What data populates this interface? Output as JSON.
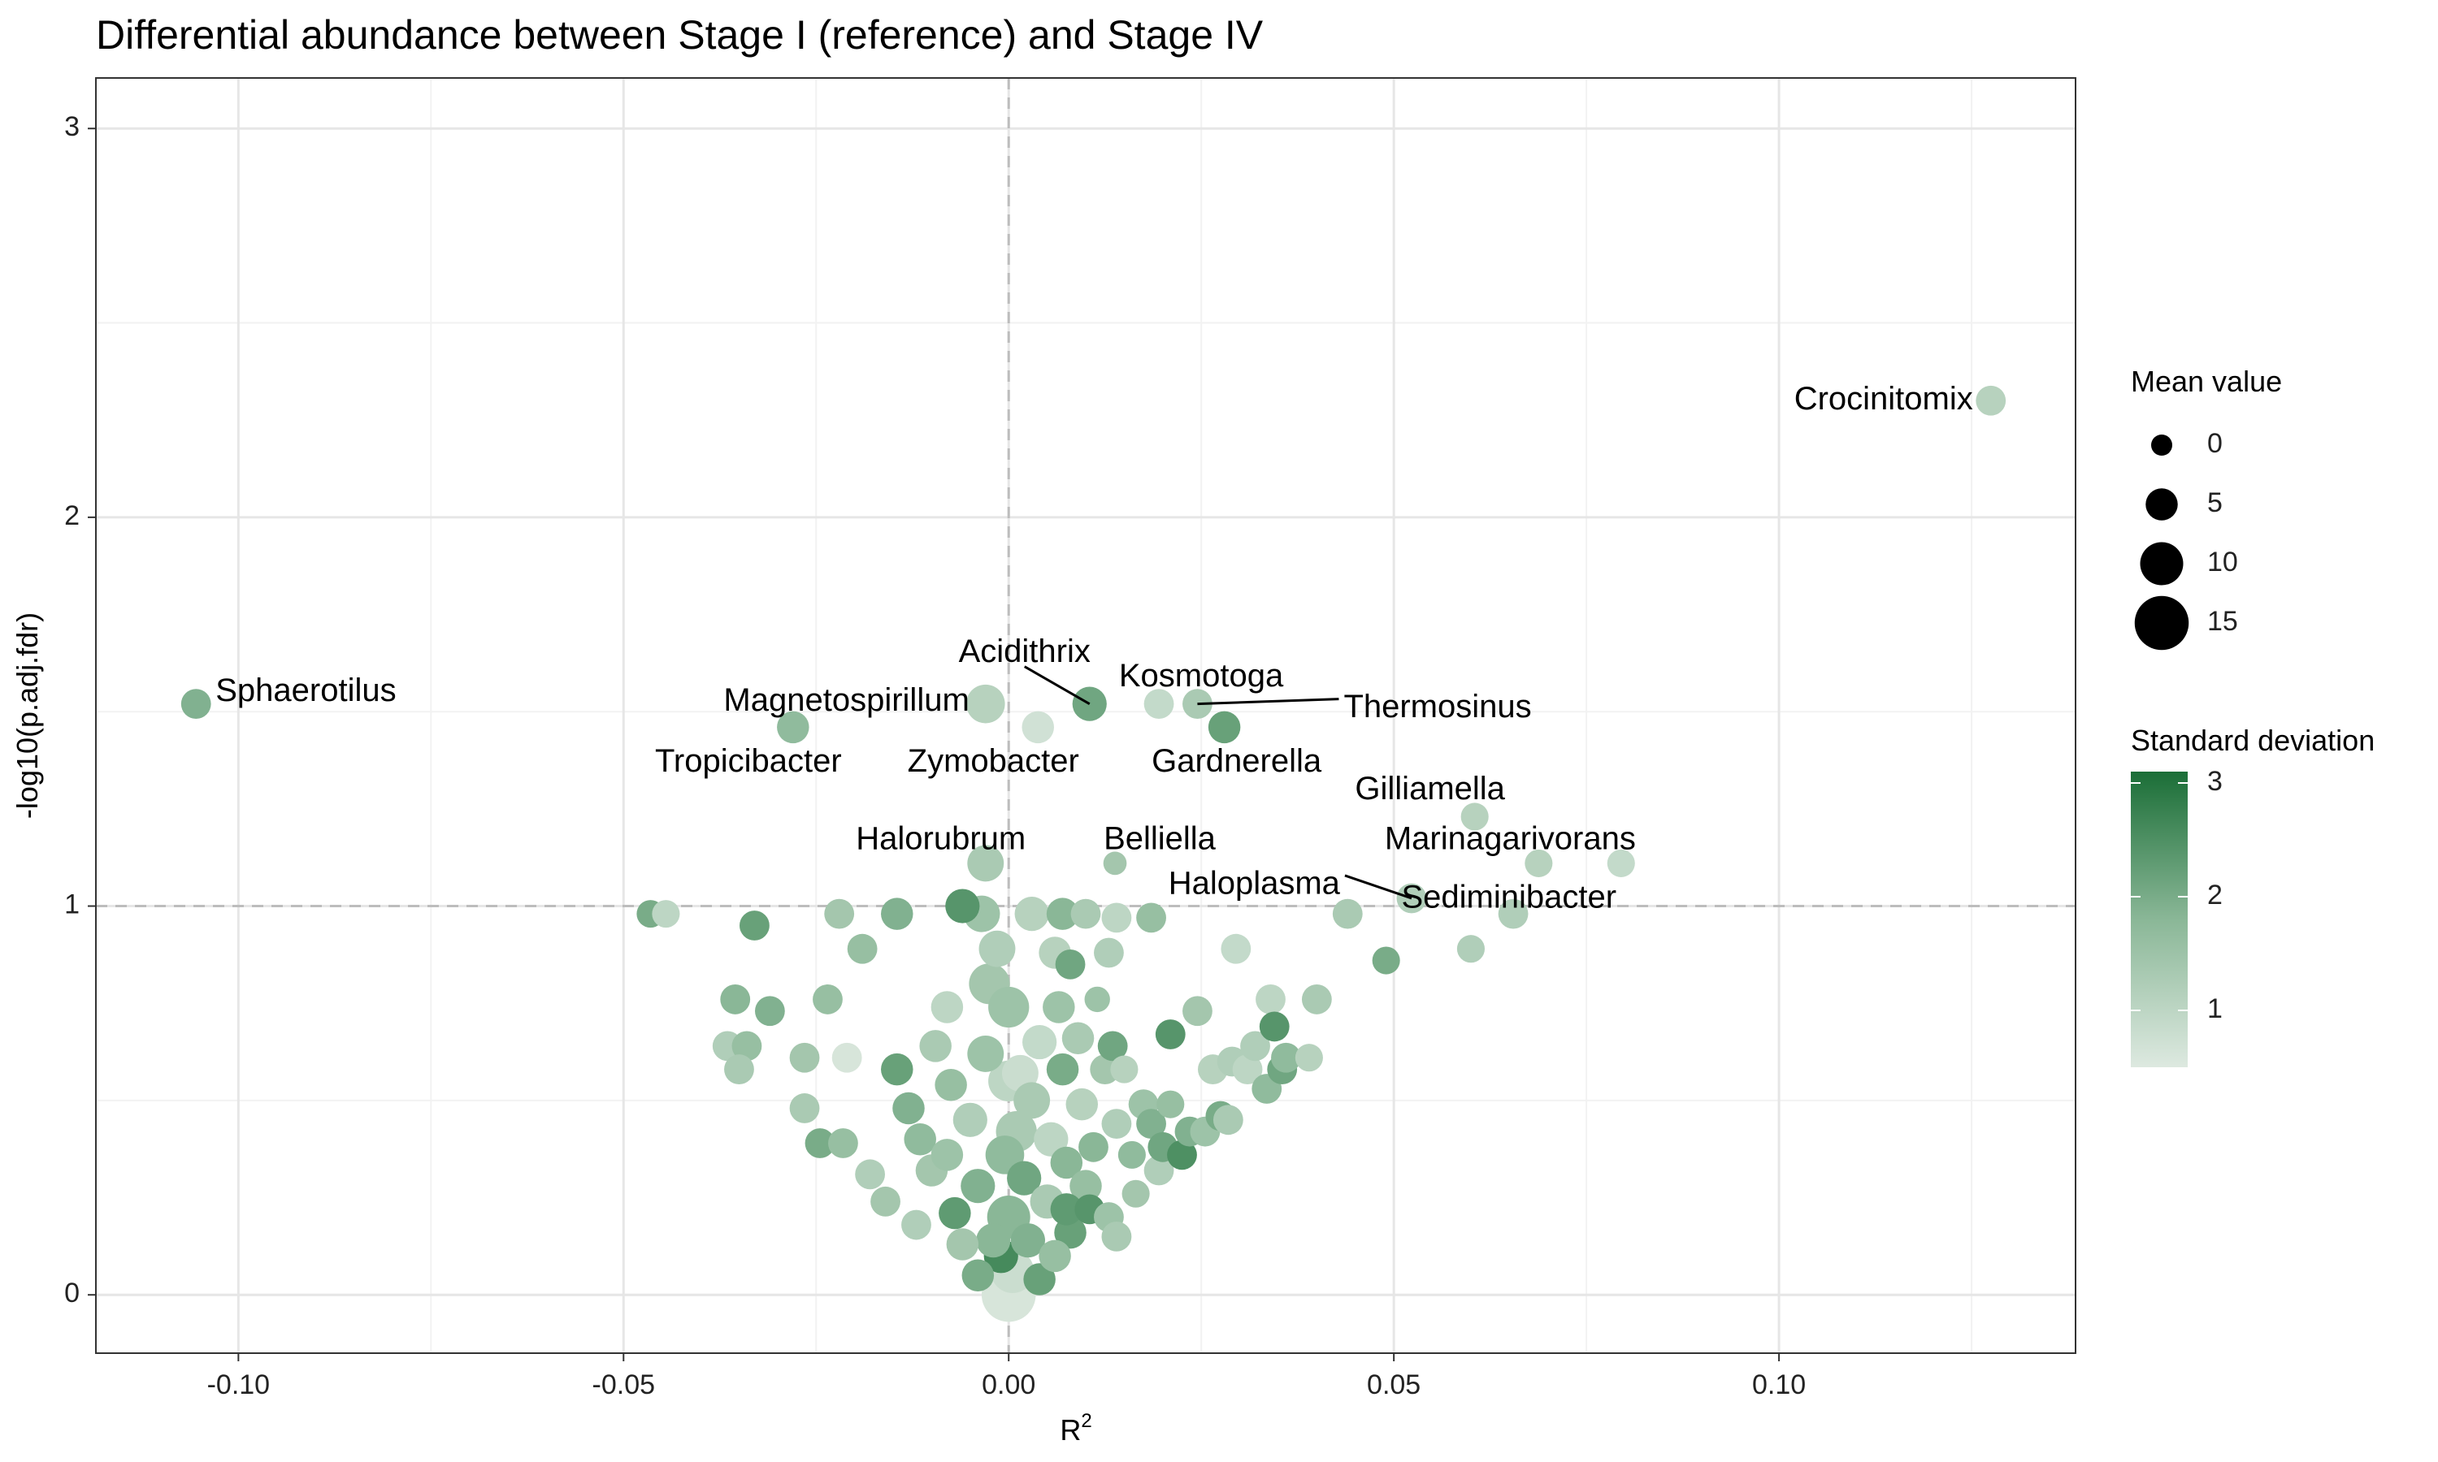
{
  "chart_data": {
    "type": "scatter",
    "title": "Differential abundance between Stage I (reference) and Stage IV",
    "xlabel": "R",
    "xlabel_superscript": "2",
    "ylabel": "-log10(p.adj.fdr)",
    "xlim": [
      -0.1185,
      0.1385
    ],
    "ylim": [
      -0.15,
      3.13
    ],
    "xticks": [
      -0.1,
      -0.05,
      0.0,
      0.05,
      0.1
    ],
    "xtick_labels": [
      "-0.10",
      "-0.05",
      "0.00",
      "0.05",
      "0.10"
    ],
    "yticks": [
      0,
      1,
      2,
      3
    ],
    "ytick_labels": [
      "0",
      "1",
      "2",
      "3"
    ],
    "grid": true,
    "reference_lines": {
      "x": 0.0,
      "y": 1.0
    },
    "legend_position": "right",
    "size_legend": {
      "title": "Mean value",
      "entries": [
        0,
        5,
        10,
        15
      ]
    },
    "color_legend": {
      "title": "Standard deviation",
      "ticks": [
        1,
        2,
        3
      ],
      "low": 0.5,
      "high": 3.1,
      "low_color": "#dde9e0",
      "mid_color": "#8ab797",
      "high_color": "#1b6e37"
    },
    "labeled_points": [
      {
        "name": "Crocinitomix",
        "x": 0.1275,
        "y": 2.3,
        "sd": 1.1,
        "mean": 4
      },
      {
        "name": "Sphaerotilus",
        "x": -0.1055,
        "y": 1.52,
        "sd": 1.9,
        "mean": 4
      },
      {
        "name": "Acidithrix",
        "x": 0.0105,
        "y": 1.52,
        "sd": 2.1,
        "mean": 6
      },
      {
        "name": "Magnetospirillum",
        "x": -0.003,
        "y": 1.52,
        "sd": 1.1,
        "mean": 8
      },
      {
        "name": "Kosmotoga",
        "x": 0.0195,
        "y": 1.52,
        "sd": 0.9,
        "mean": 4
      },
      {
        "name": "Thermosinus",
        "x": 0.0245,
        "y": 1.52,
        "sd": 1.3,
        "mean": 4
      },
      {
        "name": "Tropicibacter",
        "x": -0.028,
        "y": 1.46,
        "sd": 1.7,
        "mean": 5
      },
      {
        "name": "Zymobacter",
        "x": 0.0038,
        "y": 1.46,
        "sd": 0.7,
        "mean": 5
      },
      {
        "name": "Gardnerella",
        "x": 0.028,
        "y": 1.46,
        "sd": 2.2,
        "mean": 5
      },
      {
        "name": "Gilliamella",
        "x": 0.0605,
        "y": 1.23,
        "sd": 1.1,
        "mean": 3
      },
      {
        "name": "Halorubrum",
        "x": -0.003,
        "y": 1.11,
        "sd": 1.3,
        "mean": 7
      },
      {
        "name": "Belliella",
        "x": 0.0138,
        "y": 1.11,
        "sd": 1.4,
        "mean": 1
      },
      {
        "name": "Marinagarivorans",
        "x": 0.0688,
        "y": 1.11,
        "sd": 1.1,
        "mean": 3
      },
      {
        "name": "Sediminibacter",
        "x": 0.0795,
        "y": 1.11,
        "sd": 0.9,
        "mean": 3
      },
      {
        "name": "Haloplasma",
        "x": 0.0523,
        "y": 1.02,
        "sd": 1.2,
        "mean": 4
      }
    ],
    "points": [
      [
        -0.0465,
        0.98,
        2.0,
        3
      ],
      [
        -0.0445,
        0.98,
        1.0,
        3
      ],
      [
        -0.033,
        0.95,
        2.2,
        4
      ],
      [
        -0.022,
        0.98,
        1.4,
        4
      ],
      [
        -0.019,
        0.89,
        1.6,
        4
      ],
      [
        -0.0145,
        0.98,
        1.9,
        5
      ],
      [
        -0.006,
        1.0,
        2.4,
        6
      ],
      [
        -0.0035,
        0.98,
        1.5,
        7
      ],
      [
        0.003,
        0.98,
        1.1,
        6
      ],
      [
        0.007,
        0.98,
        1.8,
        5
      ],
      [
        0.01,
        0.98,
        1.3,
        4
      ],
      [
        0.014,
        0.97,
        1.0,
        4
      ],
      [
        0.0185,
        0.97,
        1.6,
        4
      ],
      [
        0.044,
        0.98,
        1.3,
        4
      ],
      [
        0.0655,
        0.98,
        1.2,
        4
      ],
      [
        0.0295,
        0.89,
        0.9,
        4
      ],
      [
        0.049,
        0.86,
        2.0,
        3
      ],
      [
        0.06,
        0.89,
        1.2,
        3
      ],
      [
        -0.0355,
        0.76,
        1.8,
        4
      ],
      [
        -0.031,
        0.73,
        1.9,
        4
      ],
      [
        -0.0235,
        0.76,
        1.6,
        4
      ],
      [
        -0.0365,
        0.64,
        1.2,
        4
      ],
      [
        -0.034,
        0.64,
        1.6,
        4
      ],
      [
        -0.035,
        0.58,
        1.3,
        4
      ],
      [
        -0.0265,
        0.61,
        1.4,
        4
      ],
      [
        -0.021,
        0.61,
        0.6,
        4
      ],
      [
        -0.0265,
        0.48,
        1.3,
        4
      ],
      [
        -0.0245,
        0.39,
        2.0,
        4
      ],
      [
        -0.0215,
        0.39,
        1.6,
        4
      ],
      [
        -0.018,
        0.31,
        1.2,
        4
      ],
      [
        -0.016,
        0.24,
        1.4,
        4
      ],
      [
        -0.0145,
        0.58,
        2.2,
        5
      ],
      [
        -0.013,
        0.48,
        1.9,
        5
      ],
      [
        -0.0115,
        0.4,
        1.7,
        5
      ],
      [
        -0.01,
        0.32,
        1.4,
        5
      ],
      [
        -0.0095,
        0.64,
        1.3,
        5
      ],
      [
        -0.008,
        0.74,
        1.0,
        5
      ],
      [
        -0.0075,
        0.54,
        1.6,
        5
      ],
      [
        -0.007,
        0.21,
        2.3,
        5
      ],
      [
        -0.006,
        0.13,
        1.4,
        5
      ],
      [
        -0.005,
        0.45,
        1.2,
        6
      ],
      [
        -0.004,
        0.28,
        1.9,
        6
      ],
      [
        -0.003,
        0.62,
        1.5,
        7
      ],
      [
        -0.0025,
        0.8,
        1.4,
        9
      ],
      [
        -0.0015,
        0.89,
        1.2,
        7
      ],
      [
        -0.001,
        0.1,
        2.6,
        6
      ],
      [
        -0.0005,
        0.36,
        1.7,
        8
      ],
      [
        0.0,
        0.74,
        1.5,
        9
      ],
      [
        0.0,
        0.55,
        1.0,
        9
      ],
      [
        0.0,
        0.2,
        1.8,
        10
      ],
      [
        0.0,
        0.0,
        0.6,
        15
      ],
      [
        0.0005,
        0.06,
        0.8,
        10
      ],
      [
        0.001,
        0.42,
        1.3,
        9
      ],
      [
        0.0015,
        0.57,
        0.8,
        7
      ],
      [
        0.002,
        0.3,
        2.1,
        6
      ],
      [
        0.0025,
        0.14,
        1.9,
        6
      ],
      [
        0.003,
        0.5,
        1.3,
        7
      ],
      [
        0.004,
        0.65,
        0.9,
        6
      ],
      [
        0.005,
        0.24,
        1.3,
        6
      ],
      [
        0.0055,
        0.4,
        1.0,
        6
      ],
      [
        0.006,
        0.88,
        1.1,
        5
      ],
      [
        0.0065,
        0.74,
        1.5,
        5
      ],
      [
        0.007,
        0.58,
        2.0,
        5
      ],
      [
        0.0075,
        0.34,
        1.8,
        5
      ],
      [
        0.008,
        0.16,
        2.2,
        5
      ],
      [
        0.008,
        0.85,
        2.1,
        4
      ],
      [
        0.009,
        0.66,
        1.3,
        5
      ],
      [
        0.0095,
        0.49,
        1.1,
        5
      ],
      [
        0.01,
        0.28,
        1.6,
        5
      ],
      [
        0.0105,
        0.22,
        2.4,
        4
      ],
      [
        0.011,
        0.38,
        1.8,
        4
      ],
      [
        0.0115,
        0.76,
        1.5,
        2
      ],
      [
        0.0125,
        0.58,
        1.4,
        4
      ],
      [
        0.013,
        0.88,
        1.2,
        4
      ],
      [
        0.013,
        0.2,
        1.5,
        4
      ],
      [
        0.0135,
        0.64,
        2.1,
        4
      ],
      [
        0.014,
        0.44,
        1.2,
        4
      ],
      [
        0.015,
        0.58,
        1.1,
        3
      ],
      [
        0.016,
        0.36,
        1.7,
        3
      ],
      [
        0.0165,
        0.26,
        1.4,
        3
      ],
      [
        0.0175,
        0.49,
        1.5,
        4
      ],
      [
        0.0185,
        0.44,
        1.9,
        4
      ],
      [
        0.0195,
        0.32,
        1.2,
        4
      ],
      [
        0.02,
        0.38,
        2.1,
        4
      ],
      [
        0.021,
        0.49,
        1.6,
        3
      ],
      [
        0.021,
        0.67,
        2.4,
        4
      ],
      [
        0.0225,
        0.36,
        2.5,
        4
      ],
      [
        0.0235,
        0.42,
        1.9,
        4
      ],
      [
        0.0245,
        0.73,
        1.4,
        4
      ],
      [
        0.0255,
        0.42,
        1.5,
        4
      ],
      [
        0.0265,
        0.58,
        1.1,
        4
      ],
      [
        0.0275,
        0.46,
        2.0,
        4
      ],
      [
        0.0285,
        0.45,
        1.3,
        4
      ],
      [
        0.029,
        0.6,
        1.2,
        4
      ],
      [
        0.031,
        0.58,
        1.0,
        4
      ],
      [
        0.032,
        0.64,
        1.2,
        4
      ],
      [
        0.0335,
        0.53,
        1.7,
        4
      ],
      [
        0.034,
        0.76,
        1.0,
        4
      ],
      [
        0.0345,
        0.69,
        2.4,
        4
      ],
      [
        0.0355,
        0.58,
        2.1,
        4
      ],
      [
        0.036,
        0.61,
        1.7,
        4
      ],
      [
        0.039,
        0.61,
        1.1,
        3
      ],
      [
        0.04,
        0.76,
        1.3,
        4
      ],
      [
        -0.004,
        0.05,
        2.0,
        5
      ],
      [
        0.004,
        0.04,
        2.2,
        5
      ],
      [
        -0.002,
        0.14,
        1.8,
        6
      ],
      [
        0.006,
        0.1,
        1.6,
        5
      ],
      [
        -0.008,
        0.36,
        1.5,
        5
      ],
      [
        0.014,
        0.15,
        1.3,
        4
      ],
      [
        -0.012,
        0.18,
        1.2,
        4
      ],
      [
        0.0075,
        0.22,
        2.3,
        5
      ]
    ]
  }
}
